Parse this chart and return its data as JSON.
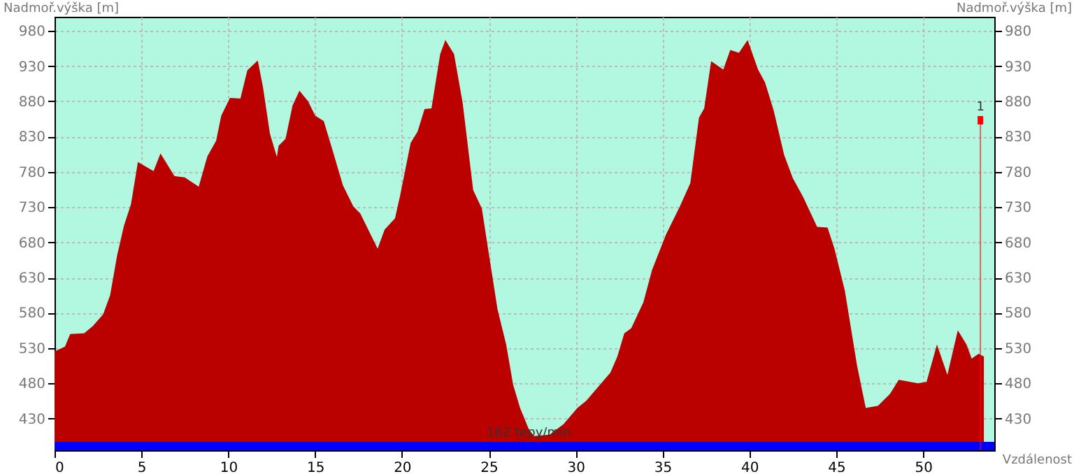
{
  "chart_data": {
    "type": "area",
    "ylabel": "Nadmoř.výška [m]",
    "y2label": "Nadmoř.výška [m]",
    "xlabel": "Vzdálenost",
    "x": [
      0,
      0.6,
      0.9,
      1.7,
      2.2,
      2.8,
      3.2,
      3.6,
      4.0,
      4.4,
      4.8,
      5.7,
      6.1,
      6.9,
      7.5,
      8.3,
      8.8,
      9.3,
      9.6,
      10.1,
      10.7,
      11.1,
      11.7,
      12.0,
      12.4,
      12.8,
      12.9,
      13.3,
      13.7,
      14.1,
      14.6,
      15.0,
      15.5,
      16.0,
      16.6,
      17.2,
      17.6,
      18.6,
      19.0,
      19.6,
      19.9,
      20.5,
      20.9,
      21.3,
      21.7,
      22.2,
      22.5,
      23.0,
      23.5,
      24.1,
      24.6,
      25.0,
      25.5,
      26.0,
      26.4,
      26.8,
      27.3,
      27.6,
      28.5,
      29.3,
      30.1,
      30.6,
      31.3,
      32.0,
      32.4,
      32.8,
      33.2,
      33.9,
      34.4,
      35.2,
      36.0,
      36.6,
      37.1,
      37.4,
      37.8,
      38.5,
      38.9,
      39.4,
      39.9,
      40.5,
      40.9,
      41.4,
      42.0,
      42.5,
      43.1,
      43.9,
      44.5,
      44.9,
      45.5,
      46.2,
      46.7,
      47.4,
      48.1,
      48.6,
      49.7,
      50.2,
      50.8,
      51.4,
      52.0,
      52.5,
      52.8,
      53.2,
      53.5
    ],
    "series": [
      {
        "color": "#bb0000",
        "values": [
          525,
          532,
          550,
          551,
          561,
          578,
          605,
          661,
          704,
          734,
          794,
          781,
          806,
          774,
          772,
          759,
          802,
          824,
          860,
          885,
          884,
          924,
          938,
          900,
          834,
          801,
          817,
          827,
          874,
          895,
          880,
          860,
          852,
          811,
          761,
          731,
          721,
          671,
          698,
          714,
          747,
          821,
          837,
          869,
          870,
          947,
          967,
          947,
          877,
          754,
          728,
          664,
          585,
          535,
          478,
          445,
          415,
          405,
          407,
          422,
          445,
          455,
          475,
          495,
          518,
          551,
          558,
          595,
          641,
          691,
          731,
          764,
          857,
          870,
          937,
          925,
          953,
          949,
          967,
          925,
          907,
          867,
          804,
          771,
          744,
          702,
          701,
          671,
          611,
          505,
          445,
          448,
          465,
          485,
          480,
          482,
          535,
          492,
          555,
          535,
          515,
          522,
          518
        ]
      }
    ],
    "xlim": [
      0,
      54.1
    ],
    "xticks": [
      0,
      5,
      10,
      15,
      20,
      25,
      30,
      35,
      40,
      45,
      50
    ],
    "ylim": [
      385,
      1000
    ],
    "yticks": [
      430,
      480,
      530,
      580,
      630,
      680,
      730,
      780,
      830,
      880,
      930,
      980
    ],
    "y2lim": [
      385,
      1000
    ],
    "y2ticks": [
      430,
      480,
      530,
      580,
      630,
      680,
      730,
      780,
      830,
      880,
      930,
      980
    ],
    "grid": true,
    "ref_lines": [
      {
        "axis": "x",
        "value": 53.3,
        "color": "#ff0000"
      }
    ],
    "bands": [
      {
        "axis": "y",
        "from": 385,
        "to": 397,
        "color": "#0000ff"
      }
    ],
    "annotations": [
      "1",
      {
        "text": "162 tepy/min",
        "x": 27.3,
        "y": 401
      }
    ]
  }
}
